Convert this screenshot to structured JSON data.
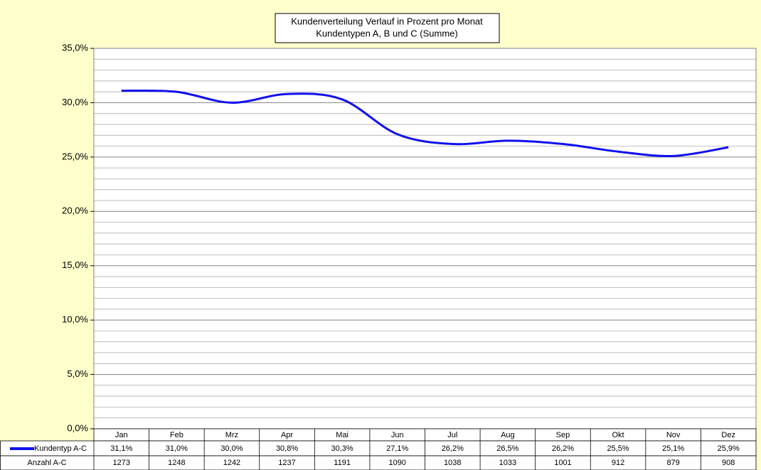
{
  "chart_data": {
    "type": "line",
    "title": "Kundenverteilung Verlauf in Prozent pro Monat",
    "subtitle": "Kundentypen A, B und C (Summe)",
    "categories": [
      "Jan",
      "Feb",
      "Mrz",
      "Apr",
      "Mai",
      "Jun",
      "Jul",
      "Aug",
      "Sep",
      "Okt",
      "Nov",
      "Dez"
    ],
    "series": [
      {
        "name": "Kundentyp A-C",
        "color": "#1010ee",
        "values": [
          31.1,
          31.0,
          30.0,
          30.8,
          30.3,
          27.1,
          26.2,
          26.5,
          26.2,
          25.5,
          25.1,
          25.9
        ],
        "value_labels": [
          "31,1%",
          "31,0%",
          "30,0%",
          "30,8%",
          "30,3%",
          "27,1%",
          "26,2%",
          "26,5%",
          "26,2%",
          "25,5%",
          "25,1%",
          "25,9%"
        ]
      }
    ],
    "table_rows": [
      {
        "name": "Anzahl A-C",
        "values": [
          1273,
          1248,
          1242,
          1237,
          1191,
          1090,
          1038,
          1033,
          1001,
          912,
          879,
          908
        ]
      }
    ],
    "ylim": [
      0,
      35
    ],
    "yticks": [
      {
        "value": 0,
        "label": "0,0%"
      },
      {
        "value": 5,
        "label": "5,0%"
      },
      {
        "value": 10,
        "label": "10,0%"
      },
      {
        "value": 15,
        "label": "15,0%"
      },
      {
        "value": 20,
        "label": "20,0%"
      },
      {
        "value": 25,
        "label": "25,0%"
      },
      {
        "value": 30,
        "label": "30,0%"
      },
      {
        "value": 35,
        "label": "35,0%"
      }
    ],
    "minor_yticks": [
      1,
      2,
      3,
      4,
      6,
      7,
      8,
      9,
      11,
      12,
      13,
      14,
      16,
      17,
      18,
      19,
      21,
      22,
      23,
      24,
      26,
      27,
      28,
      29,
      31,
      32,
      33,
      34
    ],
    "grid": true,
    "smooth": true
  }
}
